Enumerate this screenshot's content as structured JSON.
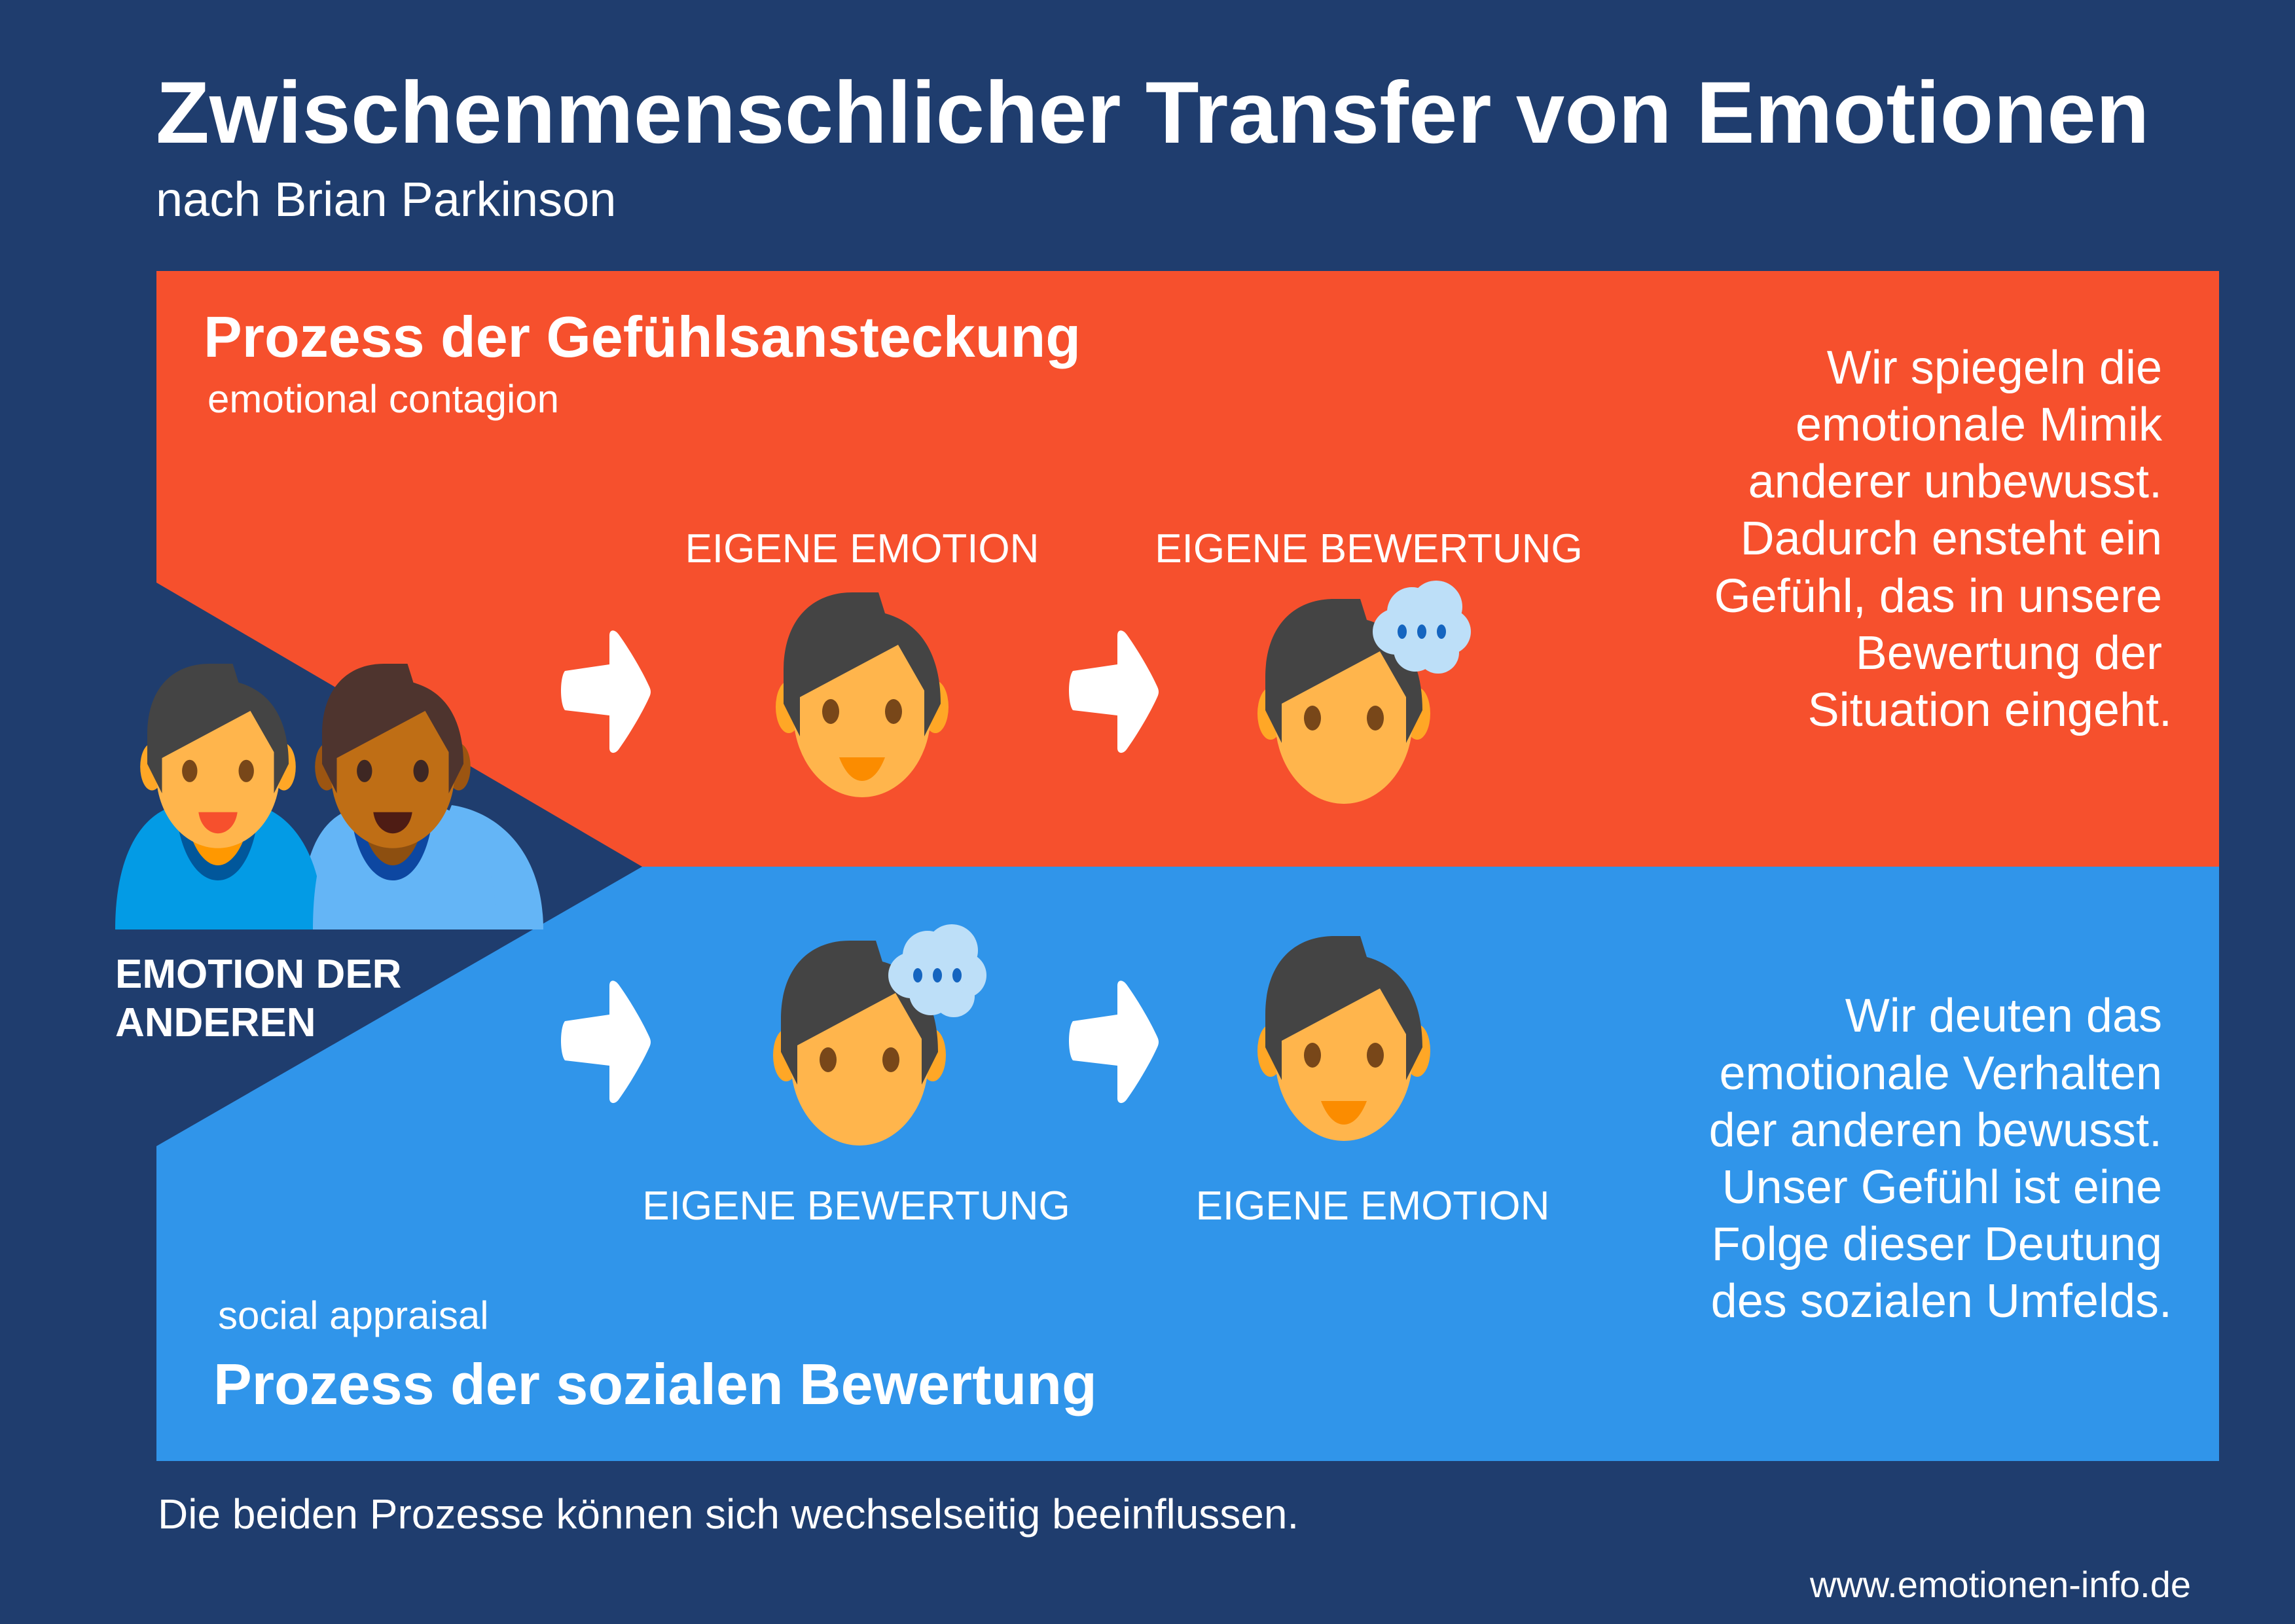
{
  "header": {
    "title": "Zwischenmenschlicher Transfer von Emotionen",
    "subtitle": "nach Brian Parkinson"
  },
  "colors": {
    "background": "#1F3D6E",
    "contagion_panel": "#F6502D",
    "appraisal_panel": "#3095EA",
    "skin": "#FFB54C",
    "hair": "#444444",
    "thought_cloud": "#BDDFF8"
  },
  "others": {
    "label_line1": "EMOTION DER",
    "label_line2": "ANDEREN",
    "icon": "two-people-icon"
  },
  "contagion": {
    "title": "Prozess der Gefühlsansteckung",
    "subtitle": "emotional contagion",
    "step1": "EIGENE EMOTION",
    "step2": "EIGENE BEWERTUNG",
    "description": [
      "Wir spiegeln  die",
      "emotionale Mimik",
      "anderer unbewusst.",
      "Dadurch ensteht ein",
      "Gefühl, das in  unsere",
      "Bewertung der",
      "Situation eingeht."
    ]
  },
  "appraisal": {
    "title": "Prozess der sozialen Bewertung",
    "subtitle": "social appraisal",
    "step1": "EIGENE BEWERTUNG",
    "step2": "EIGENE EMOTION",
    "description": [
      "Wir  deuten das",
      "emotionale Verhalten",
      "der anderen bewusst.",
      "Unser Gefühl ist eine",
      "Folge dieser Deutung",
      "des sozialen Umfelds."
    ]
  },
  "footer": {
    "note": "Die beiden Prozesse können sich wechselseitig beeinflussen.",
    "url": "www.emotionen-info.de"
  }
}
